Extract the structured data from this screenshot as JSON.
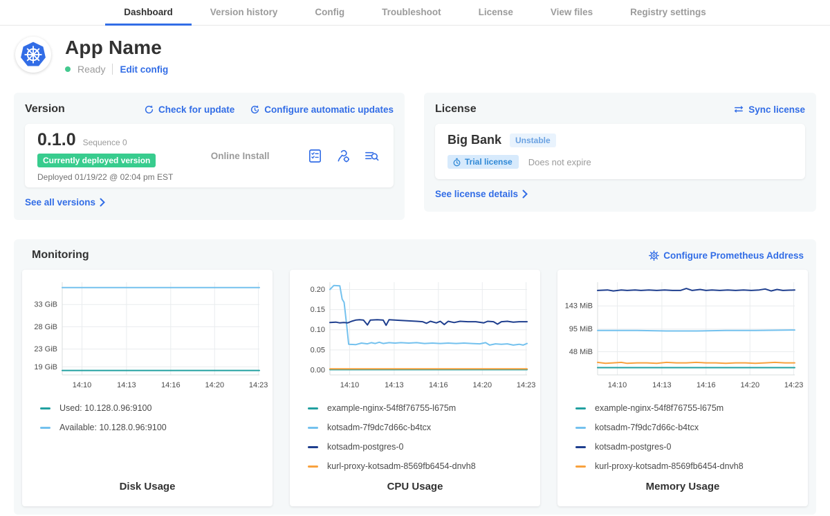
{
  "nav": {
    "tabs": [
      {
        "label": "Dashboard",
        "active": true
      },
      {
        "label": "Version history",
        "active": false
      },
      {
        "label": "Config",
        "active": false
      },
      {
        "label": "Troubleshoot",
        "active": false
      },
      {
        "label": "License",
        "active": false
      },
      {
        "label": "View files",
        "active": false
      },
      {
        "label": "Registry settings",
        "active": false
      }
    ]
  },
  "app": {
    "title": "App Name",
    "status": "Ready",
    "edit_config": "Edit config"
  },
  "version": {
    "title": "Version",
    "check_for_update": "Check for update",
    "configure_updates": "Configure automatic updates",
    "number": "0.1.0",
    "sequence": "Sequence 0",
    "deployed_badge": "Currently deployed version",
    "deployed_at": "Deployed 01/19/22 @ 02:04 pm EST",
    "install_type": "Online Install",
    "see_all_versions": "See all versions"
  },
  "license": {
    "title": "License",
    "sync_label": "Sync license",
    "customer": "Big Bank",
    "channel": "Unstable",
    "type_badge": "Trial license",
    "expiry": "Does not expire",
    "see_details": "See license details"
  },
  "monitoring": {
    "title": "Monitoring",
    "configure_prometheus": "Configure Prometheus Address"
  },
  "colors": {
    "link_blue": "#326de6",
    "badge_green": "#38cc8e",
    "series_teal": "#21a0a0",
    "series_lightblue": "#73c1ee",
    "series_navy": "#1e3e8e",
    "series_orange": "#f9a13d"
  },
  "chart_data": [
    {
      "type": "line",
      "title": "Disk Usage",
      "ylim": [
        17.2,
        38
      ],
      "yticks": [
        {
          "v": 33,
          "label": "33 GiB"
        },
        {
          "v": 28,
          "label": "28 GiB"
        },
        {
          "v": 23,
          "label": "23 GiB"
        },
        {
          "v": 19,
          "label": "19 GiB"
        }
      ],
      "xticks": [
        {
          "x": 0.1,
          "label": "14:10"
        },
        {
          "x": 0.326,
          "label": "14:13"
        },
        {
          "x": 0.55,
          "label": "14:16"
        },
        {
          "x": 0.773,
          "label": "14:20"
        },
        {
          "x": 0.995,
          "label": "14:23"
        }
      ],
      "series": [
        {
          "name": "Used: 10.128.0.96:9100",
          "color": "#21a0a0",
          "points": [
            [
              0,
              18.2
            ],
            [
              1,
              18.2
            ]
          ]
        },
        {
          "name": "Available: 10.128.0.96:9100",
          "color": "#73c1ee",
          "points": [
            [
              0,
              36.8
            ],
            [
              1,
              36.8
            ]
          ]
        }
      ]
    },
    {
      "type": "line",
      "title": "CPU Usage",
      "ylim": [
        -0.012,
        0.218
      ],
      "yticks": [
        {
          "v": 0.2,
          "label": "0.20"
        },
        {
          "v": 0.15,
          "label": "0.15"
        },
        {
          "v": 0.1,
          "label": "0.10"
        },
        {
          "v": 0.05,
          "label": "0.05"
        },
        {
          "v": 0.0,
          "label": "0.00"
        }
      ],
      "xticks": [
        {
          "x": 0.1,
          "label": "14:10"
        },
        {
          "x": 0.326,
          "label": "14:13"
        },
        {
          "x": 0.55,
          "label": "14:16"
        },
        {
          "x": 0.773,
          "label": "14:20"
        },
        {
          "x": 0.995,
          "label": "14:23"
        }
      ],
      "series": [
        {
          "name": "example-nginx-54f8f76755-l675m",
          "color": "#21a0a0",
          "points": [
            [
              0,
              0.001
            ],
            [
              1,
              0.001
            ]
          ]
        },
        {
          "name": "kotsadm-7f9dc7d66c-b4tcx",
          "color": "#73c1ee",
          "points": [
            [
              0,
              0.2
            ],
            [
              0.02,
              0.21
            ],
            [
              0.05,
              0.209
            ],
            [
              0.062,
              0.176
            ],
            [
              0.072,
              0.168
            ],
            [
              0.085,
              0.112
            ],
            [
              0.095,
              0.064
            ],
            [
              0.13,
              0.063
            ],
            [
              0.16,
              0.067
            ],
            [
              0.19,
              0.065
            ],
            [
              0.21,
              0.068
            ],
            [
              0.23,
              0.066
            ],
            [
              0.25,
              0.069
            ],
            [
              0.27,
              0.066
            ],
            [
              0.3,
              0.068
            ],
            [
              0.33,
              0.067
            ],
            [
              0.36,
              0.068
            ],
            [
              0.4,
              0.067
            ],
            [
              0.44,
              0.068
            ],
            [
              0.48,
              0.066
            ],
            [
              0.52,
              0.067
            ],
            [
              0.56,
              0.066
            ],
            [
              0.6,
              0.067
            ],
            [
              0.64,
              0.066
            ],
            [
              0.68,
              0.067
            ],
            [
              0.72,
              0.066
            ],
            [
              0.76,
              0.065
            ],
            [
              0.79,
              0.068
            ],
            [
              0.81,
              0.062
            ],
            [
              0.84,
              0.065
            ],
            [
              0.87,
              0.064
            ],
            [
              0.9,
              0.065
            ],
            [
              0.93,
              0.062
            ],
            [
              0.96,
              0.064
            ],
            [
              0.98,
              0.062
            ],
            [
              1,
              0.066
            ]
          ]
        },
        {
          "name": "kotsadm-postgres-0",
          "color": "#1e3e8e",
          "points": [
            [
              0,
              0.118
            ],
            [
              0.03,
              0.119
            ],
            [
              0.05,
              0.117
            ],
            [
              0.07,
              0.118
            ],
            [
              0.09,
              0.117
            ],
            [
              0.11,
              0.121
            ],
            [
              0.13,
              0.124
            ],
            [
              0.15,
              0.125
            ],
            [
              0.17,
              0.124
            ],
            [
              0.19,
              0.112
            ],
            [
              0.205,
              0.124
            ],
            [
              0.24,
              0.125
            ],
            [
              0.27,
              0.124
            ],
            [
              0.285,
              0.111
            ],
            [
              0.3,
              0.125
            ],
            [
              0.33,
              0.124
            ],
            [
              0.36,
              0.123
            ],
            [
              0.4,
              0.122
            ],
            [
              0.44,
              0.121
            ],
            [
              0.47,
              0.12
            ],
            [
              0.49,
              0.116
            ],
            [
              0.51,
              0.121
            ],
            [
              0.54,
              0.117
            ],
            [
              0.56,
              0.121
            ],
            [
              0.58,
              0.113
            ],
            [
              0.6,
              0.121
            ],
            [
              0.63,
              0.118
            ],
            [
              0.66,
              0.121
            ],
            [
              0.7,
              0.12
            ],
            [
              0.74,
              0.12
            ],
            [
              0.78,
              0.117
            ],
            [
              0.8,
              0.121
            ],
            [
              0.83,
              0.12
            ],
            [
              0.85,
              0.114
            ],
            [
              0.87,
              0.12
            ],
            [
              0.9,
              0.121
            ],
            [
              0.93,
              0.119
            ],
            [
              0.96,
              0.12
            ],
            [
              1,
              0.12
            ]
          ]
        },
        {
          "name": "kurl-proxy-kotsadm-8569fb6454-dnvh8",
          "color": "#f9a13d",
          "points": [
            [
              0,
              0.003
            ],
            [
              1,
              0.003
            ]
          ]
        }
      ]
    },
    {
      "type": "line",
      "title": "Memory Usage",
      "ylim": [
        0,
        192
      ],
      "yticks": [
        {
          "v": 143,
          "label": "143 MiB"
        },
        {
          "v": 95,
          "label": "95 MiB"
        },
        {
          "v": 48,
          "label": "48 MiB"
        }
      ],
      "xticks": [
        {
          "x": 0.1,
          "label": "14:10"
        },
        {
          "x": 0.326,
          "label": "14:13"
        },
        {
          "x": 0.55,
          "label": "14:16"
        },
        {
          "x": 0.773,
          "label": "14:20"
        },
        {
          "x": 0.995,
          "label": "14:23"
        }
      ],
      "series": [
        {
          "name": "example-nginx-54f8f76755-l675m",
          "color": "#21a0a0",
          "points": [
            [
              0,
              15
            ],
            [
              1,
              15
            ]
          ]
        },
        {
          "name": "kotsadm-7f9dc7d66c-b4tcx",
          "color": "#73c1ee",
          "points": [
            [
              0,
              92
            ],
            [
              0.2,
              92
            ],
            [
              0.35,
              91
            ],
            [
              0.5,
              91
            ],
            [
              0.65,
              92
            ],
            [
              0.8,
              92
            ],
            [
              1,
              93
            ]
          ]
        },
        {
          "name": "kotsadm-postgres-0",
          "color": "#1e3e8e",
          "points": [
            [
              0,
              175
            ],
            [
              0.05,
              176
            ],
            [
              0.08,
              174
            ],
            [
              0.12,
              176
            ],
            [
              0.15,
              175
            ],
            [
              0.19,
              176
            ],
            [
              0.22,
              175
            ],
            [
              0.26,
              176
            ],
            [
              0.3,
              175
            ],
            [
              0.34,
              176
            ],
            [
              0.38,
              175
            ],
            [
              0.42,
              175
            ],
            [
              0.45,
              179
            ],
            [
              0.48,
              175
            ],
            [
              0.52,
              177
            ],
            [
              0.55,
              175
            ],
            [
              0.58,
              176
            ],
            [
              0.62,
              175
            ],
            [
              0.66,
              176
            ],
            [
              0.7,
              175
            ],
            [
              0.74,
              176
            ],
            [
              0.78,
              175
            ],
            [
              0.82,
              176
            ],
            [
              0.85,
              178
            ],
            [
              0.88,
              174
            ],
            [
              0.91,
              177
            ],
            [
              0.94,
              175
            ],
            [
              1,
              176
            ]
          ]
        },
        {
          "name": "kurl-proxy-kotsadm-8569fb6454-dnvh8",
          "color": "#f9a13d",
          "points": [
            [
              0,
              26
            ],
            [
              0.04,
              24
            ],
            [
              0.08,
              25
            ],
            [
              0.12,
              26
            ],
            [
              0.15,
              24
            ],
            [
              0.2,
              25
            ],
            [
              0.25,
              25
            ],
            [
              0.3,
              24
            ],
            [
              0.35,
              26
            ],
            [
              0.4,
              25
            ],
            [
              0.45,
              25
            ],
            [
              0.5,
              26
            ],
            [
              0.55,
              25
            ],
            [
              0.6,
              25
            ],
            [
              0.65,
              24
            ],
            [
              0.7,
              25
            ],
            [
              0.75,
              25
            ],
            [
              0.8,
              24
            ],
            [
              0.85,
              25
            ],
            [
              0.9,
              26
            ],
            [
              0.95,
              25
            ],
            [
              1,
              25
            ]
          ]
        }
      ]
    }
  ]
}
